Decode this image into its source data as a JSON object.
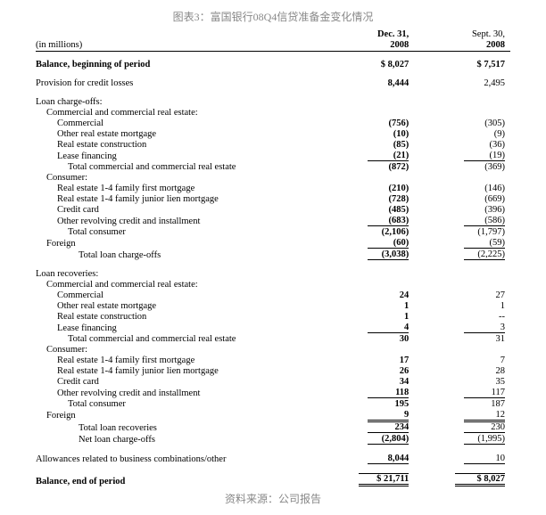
{
  "title": "图表3：富国银行08Q4信贷准备金变化情况",
  "source": "资料来源：公司报告",
  "unit_label": "(in millions)",
  "col1_top": "Dec. 31,",
  "col1_bot": "2008",
  "col2_top": "Sept. 30,",
  "col2_bot": "2008",
  "rows": [
    {
      "type": "row",
      "label": "Balance, beginning of period",
      "v1": "$    8,027",
      "v2": "$ 7,517",
      "bold": true,
      "indent": 0
    },
    {
      "type": "spacer"
    },
    {
      "type": "row",
      "label": "Provision for credit losses",
      "v1": "8,444",
      "v2": "2,495",
      "bold_v1": true,
      "indent": 0
    },
    {
      "type": "spacer"
    },
    {
      "type": "row",
      "label": "Loan charge-offs:",
      "v1": "",
      "v2": "",
      "indent": 0
    },
    {
      "type": "row",
      "label": "Commercial and commercial real estate:",
      "v1": "",
      "v2": "",
      "indent": 1
    },
    {
      "type": "row",
      "label": "Commercial",
      "v1": "(756)",
      "v2": "(305)",
      "bold_v1": true,
      "indent": 2
    },
    {
      "type": "row",
      "label": "Other real estate mortgage",
      "v1": "(10)",
      "v2": "(9)",
      "bold_v1": true,
      "indent": 2
    },
    {
      "type": "row",
      "label": "Real estate construction",
      "v1": "(85)",
      "v2": "(36)",
      "bold_v1": true,
      "indent": 2
    },
    {
      "type": "row",
      "label": "Lease financing",
      "v1": "(21)",
      "v2": "(19)",
      "bold_v1": true,
      "indent": 2,
      "ubot": true
    },
    {
      "type": "row",
      "label": "Total commercial and commercial real estate",
      "v1": "(872)",
      "v2": "(369)",
      "bold_v1": true,
      "indent": 3
    },
    {
      "type": "row",
      "label": "Consumer:",
      "v1": "",
      "v2": "",
      "indent": 1
    },
    {
      "type": "row",
      "label": "Real estate 1-4 family first mortgage",
      "v1": "(210)",
      "v2": "(146)",
      "bold_v1": true,
      "indent": 2
    },
    {
      "type": "row",
      "label": "Real estate 1-4 family junior lien mortgage",
      "v1": "(728)",
      "v2": "(669)",
      "bold_v1": true,
      "indent": 2
    },
    {
      "type": "row",
      "label": "Credit card",
      "v1": "(485)",
      "v2": "(396)",
      "bold_v1": true,
      "indent": 2
    },
    {
      "type": "row",
      "label": "Other revolving credit and installment",
      "v1": "(683)",
      "v2": "(586)",
      "bold_v1": true,
      "indent": 2,
      "ubot": true
    },
    {
      "type": "row",
      "label": "Total consumer",
      "v1": "(2,106)",
      "v2": "(1,797)",
      "bold_v1": true,
      "indent": 3
    },
    {
      "type": "row",
      "label": "Foreign",
      "v1": "(60)",
      "v2": "(59)",
      "bold_v1": true,
      "indent": 1,
      "ubot": true
    },
    {
      "type": "row",
      "label": "Total loan charge-offs",
      "v1": "(3,038)",
      "v2": "(2,225)",
      "bold_v1": true,
      "indent": 4,
      "ubot": true
    },
    {
      "type": "spacer"
    },
    {
      "type": "row",
      "label": "Loan recoveries:",
      "v1": "",
      "v2": "",
      "indent": 0
    },
    {
      "type": "row",
      "label": "Commercial and commercial real estate:",
      "v1": "",
      "v2": "",
      "indent": 1
    },
    {
      "type": "row",
      "label": "Commercial",
      "v1": "24",
      "v2": "27",
      "bold_v1": true,
      "indent": 2
    },
    {
      "type": "row",
      "label": "Other real estate mortgage",
      "v1": "1",
      "v2": "1",
      "bold_v1": true,
      "indent": 2
    },
    {
      "type": "row",
      "label": "Real estate construction",
      "v1": "1",
      "v2": "--",
      "bold_v1": true,
      "indent": 2
    },
    {
      "type": "row",
      "label": "Lease financing",
      "v1": "4",
      "v2": "3",
      "bold_v1": true,
      "indent": 2,
      "ubot": true
    },
    {
      "type": "row",
      "label": "Total commercial and commercial real estate",
      "v1": "30",
      "v2": "31",
      "bold_v1": true,
      "indent": 3
    },
    {
      "type": "row",
      "label": "Consumer:",
      "v1": "",
      "v2": "",
      "indent": 1
    },
    {
      "type": "row",
      "label": "Real estate 1-4 family first mortgage",
      "v1": "17",
      "v2": "7",
      "bold_v1": true,
      "indent": 2
    },
    {
      "type": "row",
      "label": "Real estate 1-4 family junior lien mortgage",
      "v1": "26",
      "v2": "28",
      "bold_v1": true,
      "indent": 2
    },
    {
      "type": "row",
      "label": "Credit card",
      "v1": "34",
      "v2": "35",
      "bold_v1": true,
      "indent": 2
    },
    {
      "type": "row",
      "label": "Other revolving credit and installment",
      "v1": "118",
      "v2": "117",
      "bold_v1": true,
      "indent": 2,
      "ubot": true
    },
    {
      "type": "row",
      "label": "Total consumer",
      "v1": "195",
      "v2": "187",
      "bold_v1": true,
      "indent": 3
    },
    {
      "type": "row",
      "label": "Foreign",
      "v1": "9",
      "v2": "12",
      "bold_v1": true,
      "indent": 1,
      "ubot": true
    },
    {
      "type": "row",
      "label": "Total loan recoveries",
      "v1": "234",
      "v2": "230",
      "bold_v1": true,
      "indent": 4,
      "utop": true,
      "ubot": true
    },
    {
      "type": "row",
      "label": "Net loan charge-offs",
      "v1": "(2,804)",
      "v2": "(1,995)",
      "bold_v1": true,
      "indent": 4,
      "ubot": true
    },
    {
      "type": "spacer"
    },
    {
      "type": "row",
      "label": "Allowances related to business combinations/other",
      "v1": "8,044",
      "v2": "10",
      "bold_v1": true,
      "indent": 0,
      "ubot": true
    },
    {
      "type": "spacer"
    },
    {
      "type": "row",
      "label": "Balance, end of period",
      "v1": "$   21,711",
      "v2": "$ 8,027",
      "bold": true,
      "indent": 0,
      "dbl": true
    }
  ]
}
